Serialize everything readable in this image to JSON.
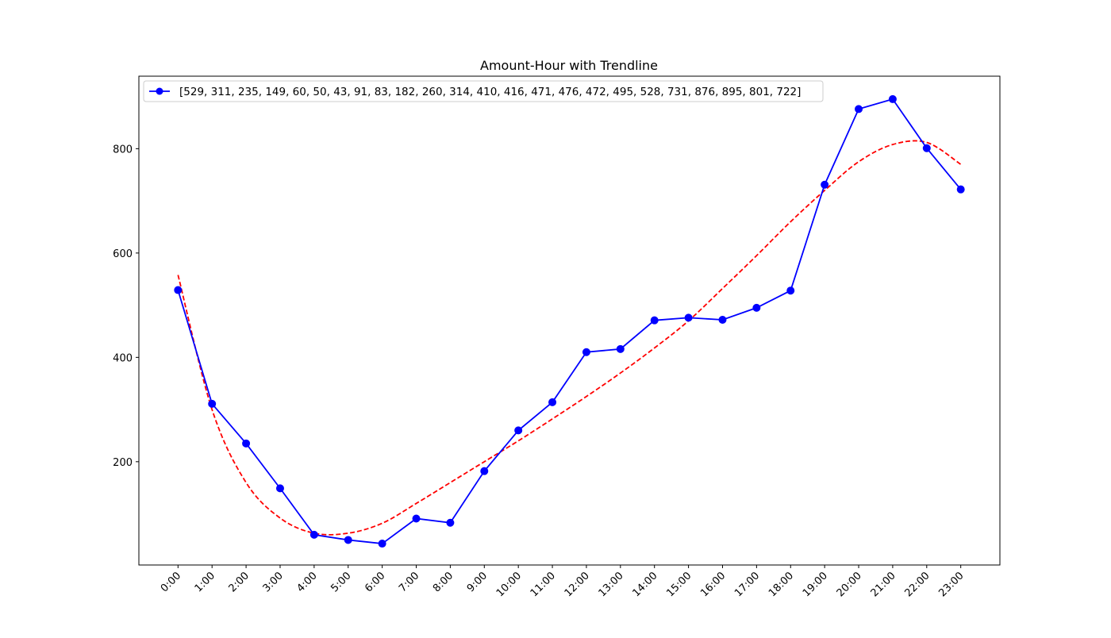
{
  "chart_data": {
    "type": "line",
    "title": "Amount-Hour with Trendline",
    "xlabel": "",
    "ylabel": "",
    "categories": [
      "0:00",
      "1:00",
      "2:00",
      "3:00",
      "4:00",
      "5:00",
      "6:00",
      "7:00",
      "8:00",
      "9:00",
      "10:00",
      "11:00",
      "12:00",
      "13:00",
      "14:00",
      "15:00",
      "16:00",
      "17:00",
      "18:00",
      "19:00",
      "20:00",
      "21:00",
      "22:00",
      "23:00"
    ],
    "series": [
      {
        "name": "[529, 311, 235, 149, 60, 50, 43, 91, 83, 182, 260, 314, 410, 416, 471, 476, 472, 495, 528, 731, 876, 895, 801, 722]",
        "values": [
          529,
          311,
          235,
          149,
          60,
          50,
          43,
          91,
          83,
          182,
          260,
          314,
          410,
          416,
          471,
          476,
          472,
          495,
          528,
          731,
          876,
          895,
          801,
          722
        ],
        "color": "#0000ff",
        "marker": "circle",
        "linestyle": "solid"
      }
    ],
    "trendline": {
      "color": "#ff0000",
      "linestyle": "dashed",
      "values": [
        558,
        300,
        160,
        92,
        63,
        63,
        82,
        120,
        160,
        200,
        240,
        282,
        325,
        370,
        418,
        470,
        532,
        595,
        660,
        720,
        775,
        808,
        812,
        770
      ]
    },
    "yticks": [
      200,
      400,
      600,
      800
    ],
    "ylim": [
      2,
      939
    ],
    "xlim": [
      -1.15,
      24.15
    ],
    "grid": false,
    "legend_position": "top-left",
    "xtick_rotation": 45
  }
}
